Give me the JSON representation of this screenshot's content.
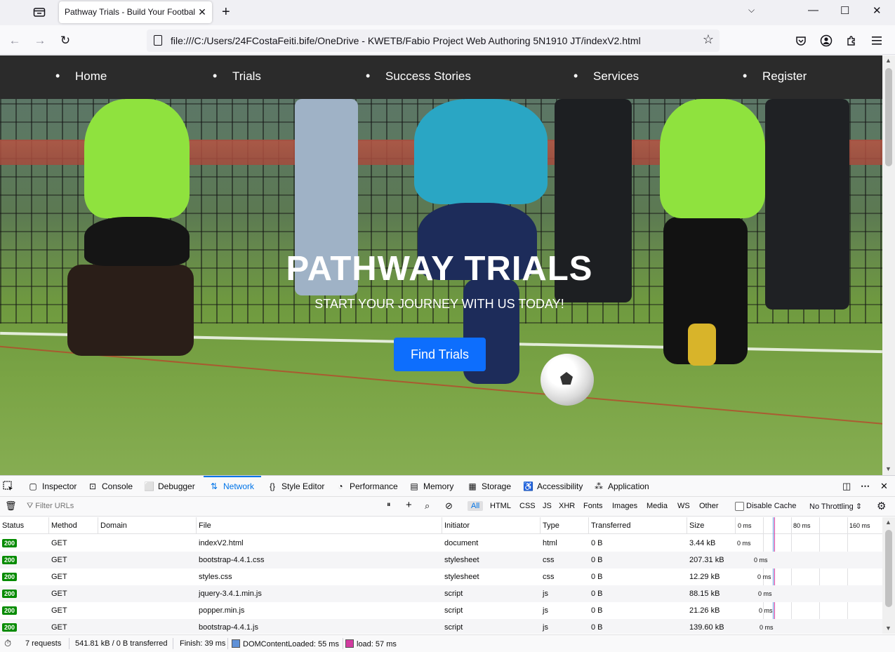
{
  "browser": {
    "tab_title": "Pathway Trials - Build Your Football Future",
    "tab_close": "✕",
    "new_tab": "+",
    "url": "file:///C:/Users/24FCostaFeiti.bife/OneDrive - KWETB/Fabio Project Web Authoring 5N1910 JT/indexV2.html",
    "back": "←",
    "forward": "→",
    "reload": "↻",
    "star": "☆",
    "minimize": "—",
    "maximize": "☐",
    "close": "✕",
    "list_all": "⌵"
  },
  "site": {
    "nav": [
      "Home",
      "Trials",
      "Success Stories",
      "Services",
      "Register"
    ],
    "hero_title": "PATHWAY TRIALS",
    "hero_subtitle": "START YOUR JOURNEY WITH US TODAY!",
    "hero_button": "Find Trials"
  },
  "devtools": {
    "tabs": [
      {
        "label": "Inspector",
        "icon": "inspector-icon"
      },
      {
        "label": "Console",
        "icon": "console-icon"
      },
      {
        "label": "Debugger",
        "icon": "debugger-icon"
      },
      {
        "label": "Network",
        "icon": "network-icon"
      },
      {
        "label": "Style Editor",
        "icon": "style-editor-icon"
      },
      {
        "label": "Performance",
        "icon": "performance-icon"
      },
      {
        "label": "Memory",
        "icon": "memory-icon"
      },
      {
        "label": "Storage",
        "icon": "storage-icon"
      },
      {
        "label": "Accessibility",
        "icon": "accessibility-icon"
      },
      {
        "label": "Application",
        "icon": "application-icon"
      }
    ],
    "active_tab": "Network",
    "filter_placeholder": "Filter URLs",
    "type_filters": [
      "All",
      "HTML",
      "CSS",
      "JS",
      "XHR",
      "Fonts",
      "Images",
      "Media",
      "WS",
      "Other"
    ],
    "active_type_filter": "All",
    "disable_cache": "Disable Cache",
    "throttling": "No Throttling ⇕",
    "columns": [
      "Status",
      "Method",
      "Domain",
      "File",
      "Initiator",
      "Type",
      "Transferred",
      "Size"
    ],
    "timeline_labels": [
      "0 ms",
      "80 ms",
      "160 ms"
    ],
    "requests": [
      {
        "status": "200",
        "method": "GET",
        "domain": "",
        "file": "indexV2.html",
        "initiator": "document",
        "type": "html",
        "transferred": "0 B",
        "size": "3.44 kB",
        "timing": "0 ms"
      },
      {
        "status": "200",
        "method": "GET",
        "domain": "",
        "file": "bootstrap-4.4.1.css",
        "initiator": "stylesheet",
        "type": "css",
        "transferred": "0 B",
        "size": "207.31 kB",
        "timing": "0 ms"
      },
      {
        "status": "200",
        "method": "GET",
        "domain": "",
        "file": "styles.css",
        "initiator": "stylesheet",
        "type": "css",
        "transferred": "0 B",
        "size": "12.29 kB",
        "timing": "0 ms"
      },
      {
        "status": "200",
        "method": "GET",
        "domain": "",
        "file": "jquery-3.4.1.min.js",
        "initiator": "script",
        "type": "js",
        "transferred": "0 B",
        "size": "88.15 kB",
        "timing": "0 ms"
      },
      {
        "status": "200",
        "method": "GET",
        "domain": "",
        "file": "popper.min.js",
        "initiator": "script",
        "type": "js",
        "transferred": "0 B",
        "size": "21.26 kB",
        "timing": "0 ms"
      },
      {
        "status": "200",
        "method": "GET",
        "domain": "",
        "file": "bootstrap-4.4.1.js",
        "initiator": "script",
        "type": "js",
        "transferred": "0 B",
        "size": "139.60 kB",
        "timing": "0 ms"
      }
    ],
    "summary": {
      "requests": "7 requests",
      "transferred": "541.81 kB / 0 B transferred",
      "finish": "Finish: 39 ms",
      "dom_content_loaded": "DOMContentLoaded: 55 ms",
      "load": "load: 57 ms"
    }
  },
  "colors": {
    "accent": "#0074e8",
    "hero_button": "#0d6efd",
    "status_ok": "#058b00",
    "dcl_marker": "#5f91d8",
    "load_marker": "#d23ba0"
  }
}
